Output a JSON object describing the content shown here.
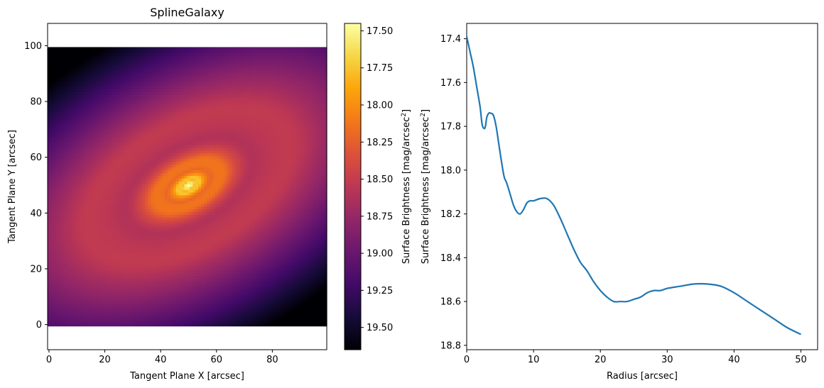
{
  "chart_data": [
    {
      "type": "heatmap",
      "title": "SplineGalaxy",
      "xlabel": "Tangent Plane X [arcsec]",
      "ylabel": "Tangent Plane Y [arcsec]",
      "xlim": [
        -0.5,
        99.5
      ],
      "ylim": [
        -9,
        108
      ],
      "image_extent": [
        -0.5,
        99.5,
        -0.5,
        99.5
      ],
      "xticks": [
        0,
        20,
        40,
        60,
        80
      ],
      "yticks": [
        0,
        20,
        40,
        60,
        80,
        100
      ],
      "colormap": "inferno",
      "center": [
        50,
        50
      ],
      "ellipse_axis_ratio": 0.55,
      "ellipse_angle_deg": -30,
      "colorbar": {
        "label": "Surface Brightness [mag/arcsec",
        "label_superscript": "2",
        "label_end": "]",
        "range": [
          17.45,
          19.65
        ],
        "inverted": true,
        "ticks": [
          "17.50",
          "17.75",
          "18.00",
          "18.25",
          "18.50",
          "18.75",
          "19.00",
          "19.25",
          "19.50"
        ]
      }
    },
    {
      "type": "line",
      "xlabel": "Radius [arcsec]",
      "ylabel": "Surface Brightness [mag/arcsec",
      "ylabel_superscript": "2",
      "ylabel_end": "]",
      "xlim": [
        0,
        52.5
      ],
      "ylim": [
        18.82,
        17.33
      ],
      "y_inverted": true,
      "xticks": [
        0,
        10,
        20,
        30,
        40,
        50
      ],
      "yticks": [
        "17.4",
        "17.6",
        "17.8",
        "18.0",
        "18.2",
        "18.4",
        "18.6",
        "18.8"
      ],
      "color": "#1f77b4",
      "x": [
        0,
        0.5,
        1,
        1.5,
        2,
        2.3,
        2.6,
        2.8,
        3.0,
        3.3,
        3.6,
        4.0,
        4.4,
        4.8,
        5.2,
        5.6,
        6,
        6.5,
        7,
        7.5,
        8,
        8.5,
        9,
        9.5,
        10,
        11,
        12,
        13,
        14,
        15,
        16,
        17,
        18,
        19,
        20,
        21,
        22,
        23,
        24,
        25,
        26,
        27,
        28,
        29,
        30,
        32,
        34,
        36,
        38,
        40,
        42,
        44,
        46,
        48,
        50
      ],
      "y": [
        17.39,
        17.46,
        17.53,
        17.62,
        17.71,
        17.79,
        17.81,
        17.8,
        17.76,
        17.74,
        17.74,
        17.75,
        17.8,
        17.88,
        17.96,
        18.03,
        18.06,
        18.11,
        18.16,
        18.19,
        18.2,
        18.18,
        18.15,
        18.14,
        18.14,
        18.13,
        18.13,
        18.16,
        18.22,
        18.29,
        18.36,
        18.42,
        18.46,
        18.51,
        18.55,
        18.58,
        18.6,
        18.6,
        18.6,
        18.59,
        18.58,
        18.56,
        18.55,
        18.55,
        18.54,
        18.53,
        18.52,
        18.52,
        18.53,
        18.56,
        18.6,
        18.64,
        18.68,
        18.72,
        18.75
      ]
    }
  ]
}
